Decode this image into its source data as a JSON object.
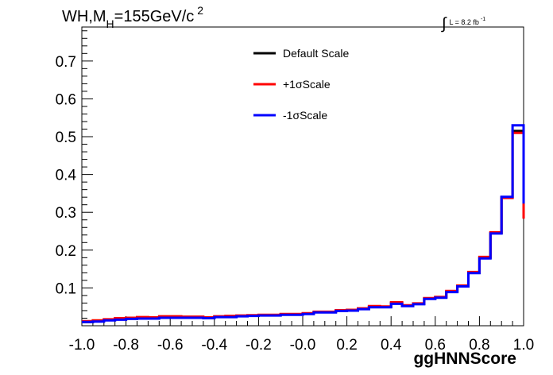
{
  "title": {
    "main": "WH,M",
    "sub": "H",
    "rest": "=155GeV/c",
    "sup": "2"
  },
  "lumi": {
    "integral": "∫",
    "text": "L = 8.2 fb",
    "sup": "-1"
  },
  "chart_data": {
    "type": "line",
    "xlabel": "ggHNNScore",
    "ylabel": "",
    "xlim": [
      -1.0,
      1.0
    ],
    "ylim": [
      0.0,
      0.79
    ],
    "bin_edges": [
      -1.0,
      -0.95,
      -0.9,
      -0.85,
      -0.8,
      -0.75,
      -0.7,
      -0.65,
      -0.6,
      -0.55,
      -0.5,
      -0.45,
      -0.4,
      -0.35,
      -0.3,
      -0.25,
      -0.2,
      -0.15,
      -0.1,
      -0.05,
      0.0,
      0.05,
      0.1,
      0.15,
      0.2,
      0.25,
      0.3,
      0.35,
      0.4,
      0.45,
      0.5,
      0.55,
      0.6,
      0.65,
      0.7,
      0.75,
      0.8,
      0.85,
      0.9,
      0.95,
      1.0
    ],
    "x_ticks": [
      "-1.0",
      "-0.8",
      "-0.6",
      "-0.4",
      "-0.2",
      "-0.0",
      "0.2",
      "0.4",
      "0.6",
      "0.8",
      "1.0"
    ],
    "x_tick_values": [
      -1.0,
      -0.8,
      -0.6,
      -0.4,
      -0.2,
      0.0,
      0.2,
      0.4,
      0.6,
      0.8,
      1.0
    ],
    "y_ticks": [
      "0.1",
      "0.2",
      "0.3",
      "0.4",
      "0.5",
      "0.6",
      "0.7"
    ],
    "y_tick_values": [
      0.1,
      0.2,
      0.3,
      0.4,
      0.5,
      0.6,
      0.7
    ],
    "legend_position": "top-right",
    "series": [
      {
        "name": "Default Scale",
        "color": "#000000",
        "values": [
          0.01,
          0.012,
          0.015,
          0.017,
          0.019,
          0.02,
          0.02,
          0.022,
          0.022,
          0.022,
          0.022,
          0.021,
          0.024,
          0.024,
          0.026,
          0.027,
          0.028,
          0.028,
          0.03,
          0.03,
          0.032,
          0.036,
          0.036,
          0.04,
          0.041,
          0.045,
          0.05,
          0.05,
          0.06,
          0.053,
          0.058,
          0.072,
          0.075,
          0.09,
          0.105,
          0.14,
          0.18,
          0.245,
          0.34,
          0.515,
          0.3
        ]
      },
      {
        "name": "+1σScale",
        "color": "#ff0000",
        "values": [
          0.012,
          0.014,
          0.017,
          0.02,
          0.021,
          0.023,
          0.022,
          0.025,
          0.025,
          0.024,
          0.024,
          0.022,
          0.025,
          0.026,
          0.027,
          0.028,
          0.029,
          0.029,
          0.031,
          0.031,
          0.033,
          0.037,
          0.037,
          0.041,
          0.042,
          0.046,
          0.052,
          0.051,
          0.062,
          0.054,
          0.059,
          0.073,
          0.076,
          0.092,
          0.106,
          0.142,
          0.182,
          0.247,
          0.338,
          0.51,
          0.283
        ]
      },
      {
        "name": "-1σScale",
        "color": "#0000ff",
        "values": [
          0.01,
          0.011,
          0.014,
          0.016,
          0.018,
          0.019,
          0.019,
          0.021,
          0.021,
          0.021,
          0.021,
          0.02,
          0.023,
          0.023,
          0.025,
          0.026,
          0.027,
          0.027,
          0.029,
          0.029,
          0.031,
          0.035,
          0.035,
          0.039,
          0.04,
          0.044,
          0.049,
          0.049,
          0.058,
          0.052,
          0.057,
          0.071,
          0.074,
          0.089,
          0.104,
          0.139,
          0.178,
          0.244,
          0.341,
          0.53,
          0.323
        ]
      }
    ]
  }
}
